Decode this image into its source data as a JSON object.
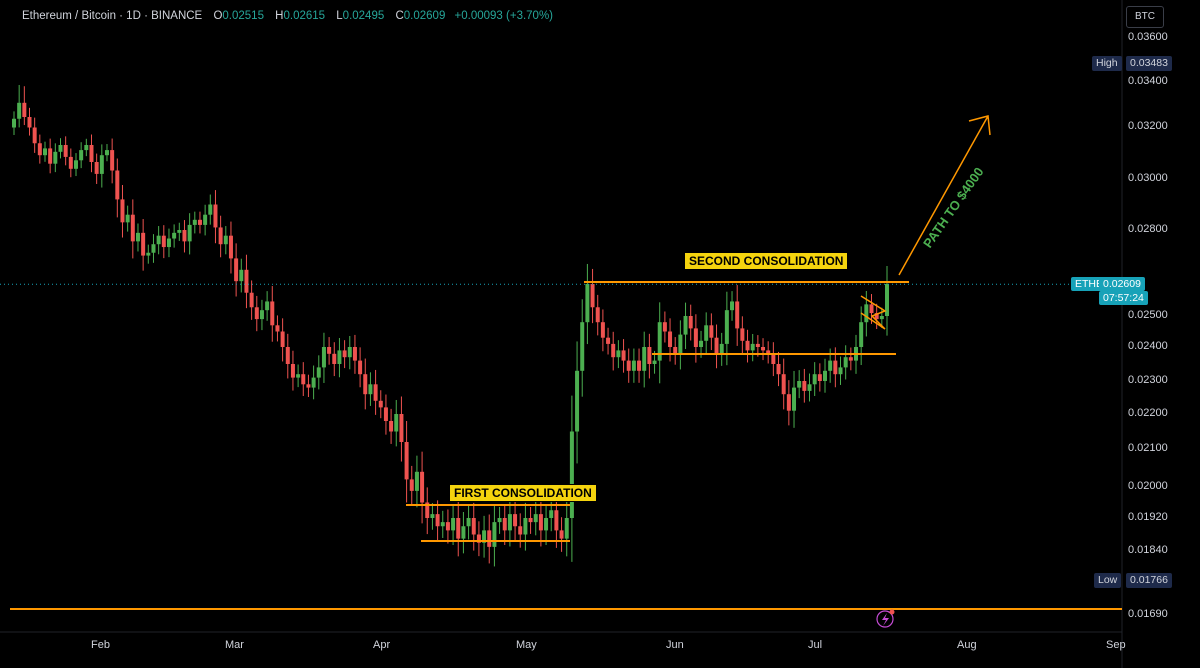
{
  "header": {
    "symbol": "Ethereum / Bitcoin · 1D · BINANCE",
    "open_label": "O",
    "open": "0.02515",
    "high_label": "H",
    "high": "0.02615",
    "low_label": "L",
    "low": "0.02495",
    "close_label": "C",
    "close": "0.02609",
    "change": "+0.00093 (+3.70%)"
  },
  "currency_button": "BTC",
  "price_axis": {
    "labels": [
      "0.03600",
      "0.03400",
      "0.03200",
      "0.03000",
      "0.02800",
      "0.02500",
      "0.02400",
      "0.02300",
      "0.02200",
      "0.02100",
      "0.02000",
      "0.01920",
      "0.01840",
      "0.01690"
    ],
    "high_tag": "High",
    "high_value": "0.03483",
    "low_tag": "Low",
    "low_value": "0.01766",
    "symbol_tag": "ETHBTC",
    "last_price": "0.02609",
    "countdown": "07:57:24"
  },
  "time_axis": [
    "Feb",
    "Mar",
    "Apr",
    "May",
    "Jun",
    "Jul",
    "Aug",
    "Sep"
  ],
  "annotations": {
    "first": "FIRST CONSOLIDATION",
    "second": "SECOND CONSOLIDATION",
    "path": "PATH TO $4000"
  },
  "colors": {
    "up": "#26a69a",
    "up_bright": "#4caf50",
    "down": "#ef5350",
    "line": "#ff9800",
    "accent": "#17a2b8"
  },
  "chart_data": {
    "type": "candlestick",
    "title": "Ethereum / Bitcoin · 1D · BINANCE",
    "ylim": [
      0.0166,
      0.0366
    ],
    "levels": {
      "high": 0.03483,
      "low": 0.01766,
      "last": 0.02609,
      "support": 0.0169
    },
    "close": [
      0.0335,
      0.0342,
      0.0336,
      0.033,
      0.0321,
      0.0314,
      0.0318,
      0.0309,
      0.0316,
      0.032,
      0.0313,
      0.0306,
      0.0311,
      0.0317,
      0.032,
      0.031,
      0.0303,
      0.0314,
      0.0317,
      0.0305,
      0.0292,
      0.0283,
      0.0286,
      0.0276,
      0.0279,
      0.0271,
      0.0272,
      0.0275,
      0.0278,
      0.0274,
      0.0277,
      0.0279,
      0.028,
      0.0276,
      0.0282,
      0.0284,
      0.0282,
      0.0286,
      0.029,
      0.0281,
      0.0275,
      0.0278,
      0.027,
      0.0262,
      0.0266,
      0.0258,
      0.0253,
      0.0249,
      0.0252,
      0.0255,
      0.0247,
      0.0245,
      0.024,
      0.0235,
      0.0231,
      0.0232,
      0.0229,
      0.0228,
      0.0231,
      0.0234,
      0.024,
      0.0238,
      0.0235,
      0.0239,
      0.0237,
      0.024,
      0.0236,
      0.0232,
      0.0226,
      0.0229,
      0.0224,
      0.0222,
      0.0218,
      0.0215,
      0.022,
      0.0212,
      0.0202,
      0.0199,
      0.0204,
      0.0196,
      0.0192,
      0.0193,
      0.019,
      0.0191,
      0.0189,
      0.0192,
      0.0187,
      0.019,
      0.0192,
      0.0188,
      0.0186,
      0.0189,
      0.0185,
      0.0191,
      0.0192,
      0.0189,
      0.0193,
      0.019,
      0.0188,
      0.0192,
      0.0191,
      0.0193,
      0.0189,
      0.0192,
      0.0194,
      0.0189,
      0.0187,
      0.0192,
      0.0215,
      0.0233,
      0.0248,
      0.0261,
      0.0253,
      0.0248,
      0.0243,
      0.0241,
      0.0237,
      0.0239,
      0.0236,
      0.0233,
      0.0236,
      0.0233,
      0.024,
      0.0235,
      0.0236,
      0.0248,
      0.0245,
      0.024,
      0.0238,
      0.0244,
      0.025,
      0.0246,
      0.024,
      0.0242,
      0.0247,
      0.0243,
      0.0238,
      0.0241,
      0.0252,
      0.0255,
      0.0246,
      0.0242,
      0.0239,
      0.0241,
      0.024,
      0.0239,
      0.0238,
      0.0235,
      0.0232,
      0.0226,
      0.0221,
      0.0228,
      0.023,
      0.0227,
      0.0229,
      0.0232,
      0.023,
      0.0233,
      0.0236,
      0.0232,
      0.0234,
      0.0237,
      0.0236,
      0.024,
      0.0248,
      0.0254,
      0.0251,
      0.0249,
      0.025,
      0.0261
    ]
  }
}
